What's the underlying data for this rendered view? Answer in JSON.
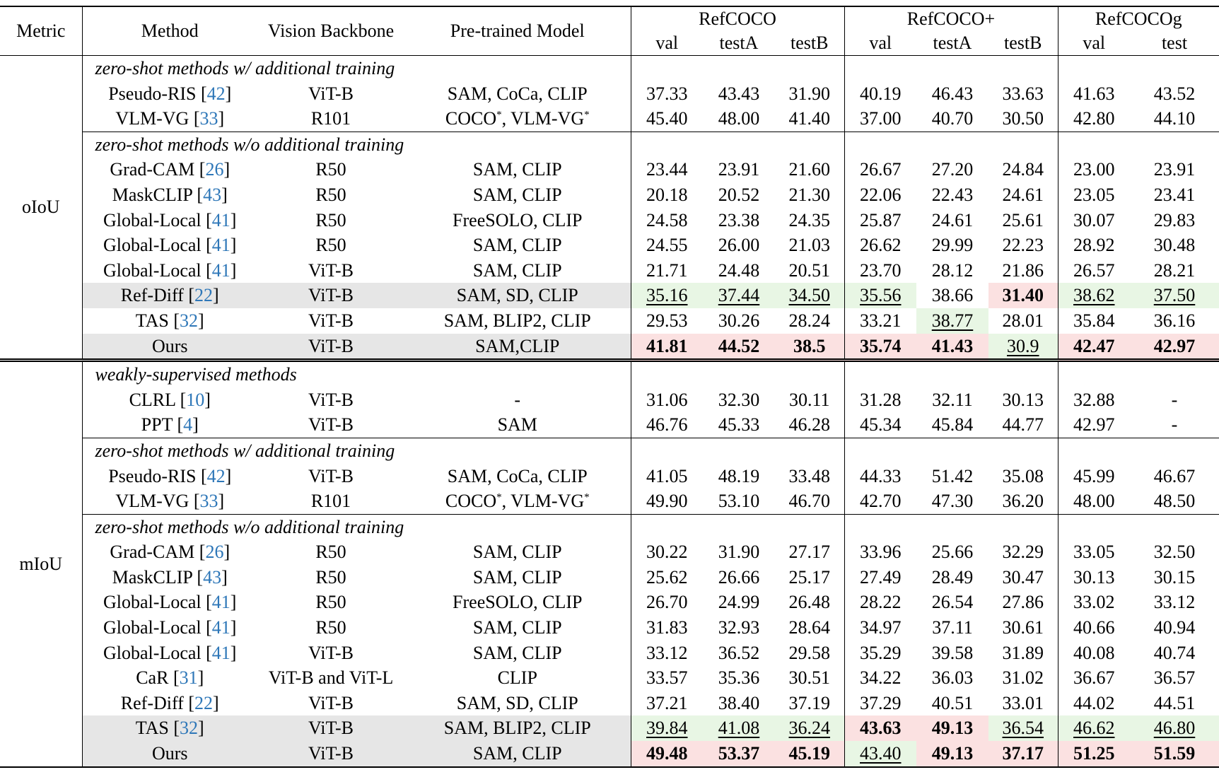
{
  "header": {
    "metric": "Metric",
    "method": "Method",
    "backbone": "Vision Backbone",
    "pretrained": "Pre-trained Model",
    "datasets": [
      "RefCOCO",
      "RefCOCO+",
      "RefCOCOg"
    ],
    "splits": [
      "val",
      "testA",
      "testB",
      "val",
      "testA",
      "testB",
      "val",
      "test"
    ]
  },
  "colors": {
    "gray": "#e6e6e6",
    "green": "#e8f6e4",
    "red": "#fbe1e1",
    "cite": "#2e77b8"
  },
  "sections": [
    {
      "metric": "oIoU",
      "groups": [
        {
          "title": "zero-shot methods w/ additional training",
          "rows": [
            {
              "method": "Pseudo-RIS",
              "cite": "42",
              "backbone": "ViT-B",
              "pretrained": "SAM, CoCa, CLIP",
              "values": [
                "37.33",
                "43.43",
                "31.90",
                "40.19",
                "46.43",
                "33.63",
                "41.63",
                "43.52"
              ]
            },
            {
              "method": "VLM-VG",
              "cite": "33",
              "backbone": "R101",
              "pretrained": "COCO*, VLM-VG*",
              "values": [
                "45.40",
                "48.00",
                "41.40",
                "37.00",
                "40.70",
                "30.50",
                "42.80",
                "44.10"
              ]
            }
          ]
        },
        {
          "title": "zero-shot methods w/o additional training",
          "rows": [
            {
              "method": "Grad-CAM",
              "cite": "26",
              "backbone": "R50",
              "pretrained": "SAM, CLIP",
              "values": [
                "23.44",
                "23.91",
                "21.60",
                "26.67",
                "27.20",
                "24.84",
                "23.00",
                "23.91"
              ]
            },
            {
              "method": "MaskCLIP",
              "cite": "43",
              "backbone": "R50",
              "pretrained": "SAM, CLIP",
              "values": [
                "20.18",
                "20.52",
                "21.30",
                "22.06",
                "22.43",
                "24.61",
                "23.05",
                "23.41"
              ]
            },
            {
              "method": "Global-Local",
              "cite": "41",
              "backbone": "R50",
              "pretrained": "FreeSOLO, CLIP",
              "values": [
                "24.58",
                "23.38",
                "24.35",
                "25.87",
                "24.61",
                "25.61",
                "30.07",
                "29.83"
              ]
            },
            {
              "method": "Global-Local",
              "cite": "41",
              "backbone": "R50",
              "pretrained": "SAM, CLIP",
              "values": [
                "24.55",
                "26.00",
                "21.03",
                "26.62",
                "29.99",
                "22.23",
                "28.92",
                "30.48"
              ]
            },
            {
              "method": "Global-Local",
              "cite": "41",
              "backbone": "ViT-B",
              "pretrained": "SAM, CLIP",
              "values": [
                "21.71",
                "24.48",
                "20.51",
                "23.70",
                "28.12",
                "21.86",
                "26.57",
                "28.21"
              ]
            },
            {
              "method": "Ref-Diff",
              "cite": "22",
              "backbone": "ViT-B",
              "pretrained": "SAM, SD, CLIP",
              "gray": true,
              "values": [
                "35.16",
                "37.44",
                "34.50",
                "35.56",
                "38.66",
                "31.40",
                "38.62",
                "37.50"
              ],
              "styles": [
                "gu",
                "gu",
                "gu",
                "gu",
                "",
                "rb",
                "gu",
                "gu"
              ]
            },
            {
              "method": "TAS",
              "cite": "32",
              "backbone": "ViT-B",
              "pretrained": "SAM, BLIP2, CLIP",
              "values": [
                "29.53",
                "30.26",
                "28.24",
                "33.21",
                "38.77",
                "28.01",
                "35.84",
                "36.16"
              ],
              "styles": [
                "",
                "",
                "",
                "",
                "gu",
                "",
                "",
                ""
              ]
            },
            {
              "method": "Ours",
              "cite": "",
              "backbone": "ViT-B",
              "pretrained": "SAM,CLIP",
              "gray": true,
              "values": [
                "41.81",
                "44.52",
                "38.5",
                "35.74",
                "41.43",
                "30.9",
                "42.47",
                "42.97"
              ],
              "styles": [
                "rb",
                "rb",
                "rb",
                "rb",
                "rb",
                "gu",
                "rb",
                "rb"
              ]
            }
          ]
        }
      ]
    },
    {
      "metric": "mIoU",
      "groups": [
        {
          "title": "weakly-supervised methods",
          "rows": [
            {
              "method": "CLRL",
              "cite": "10",
              "backbone": "ViT-B",
              "pretrained": "-",
              "values": [
                "31.06",
                "32.30",
                "30.11",
                "31.28",
                "32.11",
                "30.13",
                "32.88",
                "-"
              ]
            },
            {
              "method": "PPT",
              "cite": "4",
              "backbone": "ViT-B",
              "pretrained": "SAM",
              "values": [
                "46.76",
                "45.33",
                "46.28",
                "45.34",
                "45.84",
                "44.77",
                "42.97",
                "-"
              ]
            }
          ]
        },
        {
          "title": "zero-shot methods w/ additional training",
          "rows": [
            {
              "method": "Pseudo-RIS",
              "cite": "42",
              "backbone": "ViT-B",
              "pretrained": "SAM, CoCa, CLIP",
              "values": [
                "41.05",
                "48.19",
                "33.48",
                "44.33",
                "51.42",
                "35.08",
                "45.99",
                "46.67"
              ]
            },
            {
              "method": "VLM-VG",
              "cite": "33",
              "backbone": "R101",
              "pretrained": "COCO*, VLM-VG*",
              "values": [
                "49.90",
                "53.10",
                "46.70",
                "42.70",
                "47.30",
                "36.20",
                "48.00",
                "48.50"
              ]
            }
          ]
        },
        {
          "title": "zero-shot methods w/o additional training",
          "rows": [
            {
              "method": "Grad-CAM",
              "cite": "26",
              "backbone": "R50",
              "pretrained": "SAM, CLIP",
              "values": [
                "30.22",
                "31.90",
                "27.17",
                "33.96",
                "25.66",
                "32.29",
                "33.05",
                "32.50"
              ]
            },
            {
              "method": "MaskCLIP",
              "cite": "43",
              "backbone": "R50",
              "pretrained": "SAM, CLIP",
              "values": [
                "25.62",
                "26.66",
                "25.17",
                "27.49",
                "28.49",
                "30.47",
                "30.13",
                "30.15"
              ]
            },
            {
              "method": "Global-Local",
              "cite": "41",
              "backbone": "R50",
              "pretrained": "FreeSOLO, CLIP",
              "values": [
                "26.70",
                "24.99",
                "26.48",
                "28.22",
                "26.54",
                "27.86",
                "33.02",
                "33.12"
              ]
            },
            {
              "method": "Global-Local",
              "cite": "41",
              "backbone": "R50",
              "pretrained": "SAM, CLIP",
              "values": [
                "31.83",
                "32.93",
                "28.64",
                "34.97",
                "37.11",
                "30.61",
                "40.66",
                "40.94"
              ]
            },
            {
              "method": "Global-Local",
              "cite": "41",
              "backbone": "ViT-B",
              "pretrained": "SAM, CLIP",
              "values": [
                "33.12",
                "36.52",
                "29.58",
                "35.29",
                "39.58",
                "31.89",
                "40.08",
                "40.74"
              ]
            },
            {
              "method": "CaR",
              "cite": "31",
              "backbone": "ViT-B and ViT-L",
              "pretrained": "CLIP",
              "values": [
                "33.57",
                "35.36",
                "30.51",
                "34.22",
                "36.03",
                "31.02",
                "36.67",
                "36.57"
              ]
            },
            {
              "method": "Ref-Diff",
              "cite": "22",
              "backbone": "ViT-B",
              "pretrained": "SAM, SD, CLIP",
              "values": [
                "37.21",
                "38.40",
                "37.19",
                "37.29",
                "40.51",
                "33.01",
                "44.02",
                "44.51"
              ]
            },
            {
              "method": "TAS",
              "cite": "32",
              "backbone": "ViT-B",
              "pretrained": "SAM, BLIP2, CLIP",
              "gray": true,
              "values": [
                "39.84",
                "41.08",
                "36.24",
                "43.63",
                "49.13",
                "36.54",
                "46.62",
                "46.80"
              ],
              "styles": [
                "gu",
                "gu",
                "gu",
                "rb",
                "rb",
                "gu",
                "gu",
                "gu"
              ]
            },
            {
              "method": "Ours",
              "cite": "",
              "backbone": "ViT-B",
              "pretrained": "SAM, CLIP",
              "gray": true,
              "values": [
                "49.48",
                "53.37",
                "45.19",
                "43.40",
                "49.13",
                "37.17",
                "51.25",
                "51.59"
              ],
              "styles": [
                "rb",
                "rb",
                "rb",
                "gu",
                "rb",
                "rb",
                "rb",
                "rb"
              ]
            }
          ]
        }
      ]
    }
  ]
}
